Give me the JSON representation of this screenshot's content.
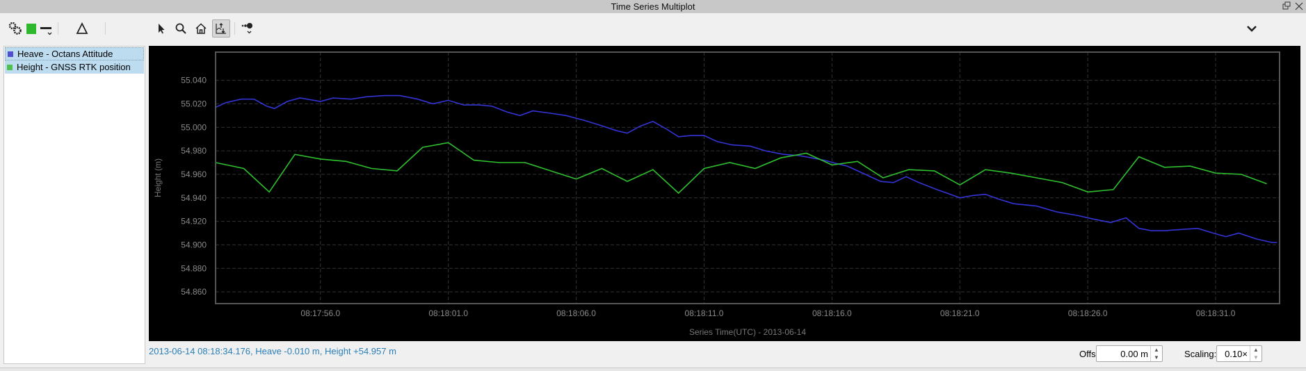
{
  "window": {
    "title": "Time Series Multiplot"
  },
  "toolbar": {
    "icons": [
      "gear-icon",
      "color-square-icon",
      "line-style-icon",
      "delta-icon",
      "pointer-icon",
      "zoom-icon",
      "home-icon",
      "pan-vertical-icon",
      "marker-icon"
    ],
    "colors": {
      "square": "#2db82d",
      "active_bg": "#d6d6d6"
    }
  },
  "legend": {
    "items": [
      {
        "label": "Heave - Octans Attitude",
        "color": "#4f4fd0"
      },
      {
        "label": "Height - GNSS RTK position",
        "color": "#4fc04f"
      }
    ]
  },
  "status": {
    "text": "2013-06-14 08:18:34.176, Heave -0.010 m, Height +54.957 m"
  },
  "controls": {
    "offset_label": "Offset:",
    "offset_value": "0.00 m",
    "scaling_label": "Scaling:",
    "scaling_value": "0.10×"
  },
  "chart_data": {
    "type": "line",
    "xlabel": "Series Time(UTC) - 2013-06-14",
    "ylabel": "Height (m)",
    "xlim": [
      "08:17:51.9",
      "08:18:33.5"
    ],
    "ylim": [
      54.85,
      55.064
    ],
    "xticks": [
      "08:17:56.0",
      "08:18:01.0",
      "08:18:06.0",
      "08:18:11.0",
      "08:18:16.0",
      "08:18:21.0",
      "08:18:26.0",
      "08:18:31.0"
    ],
    "yticks": [
      "55.040",
      "55.020",
      "55.000",
      "54.980",
      "54.960",
      "54.940",
      "54.920",
      "54.900",
      "54.880",
      "54.860"
    ],
    "grid": true,
    "background": "#000000",
    "series": [
      {
        "name": "Heave - Octans Attitude",
        "color": "#3434d8",
        "x": [
          "08:17:51.9",
          "08:17:52.3",
          "08:17:52.9",
          "08:17:53.4",
          "08:17:53.9",
          "08:17:54.2",
          "08:17:54.7",
          "08:17:55.2",
          "08:17:56.0",
          "08:17:56.5",
          "08:17:57.2",
          "08:17:57.8",
          "08:17:58.5",
          "08:17:59.1",
          "08:17:59.8",
          "08:18:00.4",
          "08:18:01.0",
          "08:18:01.6",
          "08:18:02.2",
          "08:18:02.7",
          "08:18:03.3",
          "08:18:03.8",
          "08:18:04.3",
          "08:18:05.0",
          "08:18:05.6",
          "08:18:06.3",
          "08:18:06.9",
          "08:18:07.6",
          "08:18:08.0",
          "08:18:08.5",
          "08:18:09.0",
          "08:18:09.5",
          "08:18:10.0",
          "08:18:10.5",
          "08:18:11.0",
          "08:18:11.5",
          "08:18:12.1",
          "08:18:12.8",
          "08:18:13.4",
          "08:18:14.1",
          "08:18:14.7",
          "08:18:15.2",
          "08:18:15.7",
          "08:18:16.2",
          "08:18:16.6",
          "08:18:17.3",
          "08:18:17.9",
          "08:18:18.4",
          "08:18:18.9",
          "08:18:19.4",
          "08:18:20.1",
          "08:18:20.5",
          "08:18:21.0",
          "08:18:21.5",
          "08:18:22.0",
          "08:18:22.5",
          "08:18:23.1",
          "08:18:24.0",
          "08:18:24.8",
          "08:18:25.6",
          "08:18:26.2",
          "08:18:26.9",
          "08:18:27.5",
          "08:18:28.0",
          "08:18:28.5",
          "08:18:29.0",
          "08:18:29.6",
          "08:18:30.3",
          "08:18:30.9",
          "08:18:31.4",
          "08:18:31.9",
          "08:18:32.6",
          "08:18:33.2",
          "08:18:33.4"
        ],
        "values": [
          55.017,
          55.021,
          55.024,
          55.024,
          55.018,
          55.016,
          55.022,
          55.025,
          55.022,
          55.025,
          55.024,
          55.026,
          55.027,
          55.027,
          55.024,
          55.02,
          55.023,
          55.019,
          55.019,
          55.018,
          55.013,
          55.01,
          55.014,
          55.012,
          55.01,
          55.006,
          55.002,
          54.997,
          54.995,
          55.001,
          55.005,
          54.999,
          54.992,
          54.993,
          54.993,
          54.988,
          54.985,
          54.984,
          54.98,
          54.977,
          54.976,
          54.974,
          54.972,
          54.969,
          54.967,
          54.96,
          54.954,
          54.953,
          54.958,
          54.953,
          54.947,
          54.944,
          54.94,
          54.942,
          54.943,
          54.939,
          54.935,
          54.933,
          54.928,
          54.925,
          54.922,
          54.919,
          54.923,
          54.914,
          54.912,
          54.912,
          54.913,
          54.914,
          54.91,
          54.907,
          54.91,
          54.905,
          54.902,
          54.902
        ]
      },
      {
        "name": "Height - GNSS RTK position",
        "color": "#2fc02f",
        "x": [
          "08:17:51.9",
          "08:17:53.0",
          "08:17:54.0",
          "08:17:55.0",
          "08:17:56.0",
          "08:17:57.0",
          "08:17:58.0",
          "08:17:59.0",
          "08:18:00.0",
          "08:18:01.0",
          "08:18:02.0",
          "08:18:03.0",
          "08:18:04.0",
          "08:18:05.0",
          "08:18:06.0",
          "08:18:07.0",
          "08:18:08.0",
          "08:18:09.0",
          "08:18:10.0",
          "08:18:11.0",
          "08:18:12.0",
          "08:18:13.0",
          "08:18:14.0",
          "08:18:15.0",
          "08:18:16.0",
          "08:18:17.0",
          "08:18:18.0",
          "08:18:19.0",
          "08:18:20.0",
          "08:18:21.0",
          "08:18:22.0",
          "08:18:23.0",
          "08:18:24.0",
          "08:18:25.0",
          "08:18:26.0",
          "08:18:27.0",
          "08:18:28.0",
          "08:18:29.0",
          "08:18:30.0",
          "08:18:31.0",
          "08:18:32.0",
          "08:18:33.0"
        ],
        "values": [
          54.97,
          54.965,
          54.945,
          54.977,
          54.973,
          54.971,
          54.965,
          54.963,
          54.983,
          54.987,
          54.972,
          54.97,
          54.97,
          54.963,
          54.956,
          54.965,
          54.954,
          54.964,
          54.944,
          54.965,
          54.97,
          54.965,
          54.974,
          54.978,
          54.968,
          54.971,
          54.957,
          54.964,
          54.963,
          54.951,
          54.964,
          54.961,
          54.957,
          54.953,
          54.945,
          54.947,
          54.975,
          54.966,
          54.967,
          54.961,
          54.96,
          54.952
        ]
      }
    ]
  }
}
